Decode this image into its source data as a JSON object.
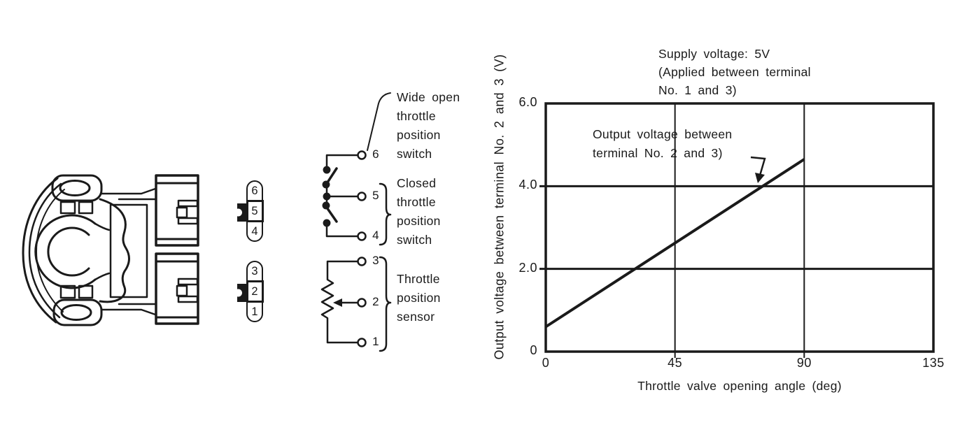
{
  "labels": {
    "wide_open_switch": [
      "Wide open",
      "throttle",
      "position",
      "switch"
    ],
    "closed_switch": [
      "Closed",
      "throttle",
      "position",
      "switch"
    ],
    "position_sensor": [
      "Throttle",
      "position",
      "sensor"
    ]
  },
  "schematic_terminals": [
    "6",
    "5",
    "4",
    "3",
    "2",
    "1"
  ],
  "connector_pins": {
    "top": [
      "6",
      "5",
      "4"
    ],
    "bottom": [
      "3",
      "2",
      "1"
    ]
  },
  "chart_data": {
    "type": "line",
    "title_lines": [
      "Supply voltage: 5V",
      "(Applied between terminal",
      "No. 1 and 3)"
    ],
    "annotation_lines": [
      "Output voltage between",
      "terminal No. 2 and 3)"
    ],
    "xlabel": "Throttle valve opening angle (deg)",
    "ylabel": "Output voltage between terminal No. 2 and 3 (V)",
    "xlim": [
      0,
      135
    ],
    "ylim": [
      0,
      6
    ],
    "x_ticks": [
      0,
      45,
      90,
      135
    ],
    "x_tick_labels": [
      "0",
      "45",
      "90",
      "135"
    ],
    "y_ticks": [
      0,
      2,
      4,
      6
    ],
    "y_tick_labels": [
      "0",
      "2.0",
      "4.0",
      "6.0"
    ],
    "grid_x": [
      45,
      90
    ],
    "grid_y": [
      2,
      4
    ],
    "grid": true,
    "legend": false,
    "series": [
      {
        "name": "Output voltage between terminal No. 2 and 3",
        "x": [
          0,
          90
        ],
        "y": [
          0.6,
          4.65
        ]
      }
    ],
    "colors": {
      "ink": "#1a1a1a",
      "background": "#ffffff"
    }
  }
}
